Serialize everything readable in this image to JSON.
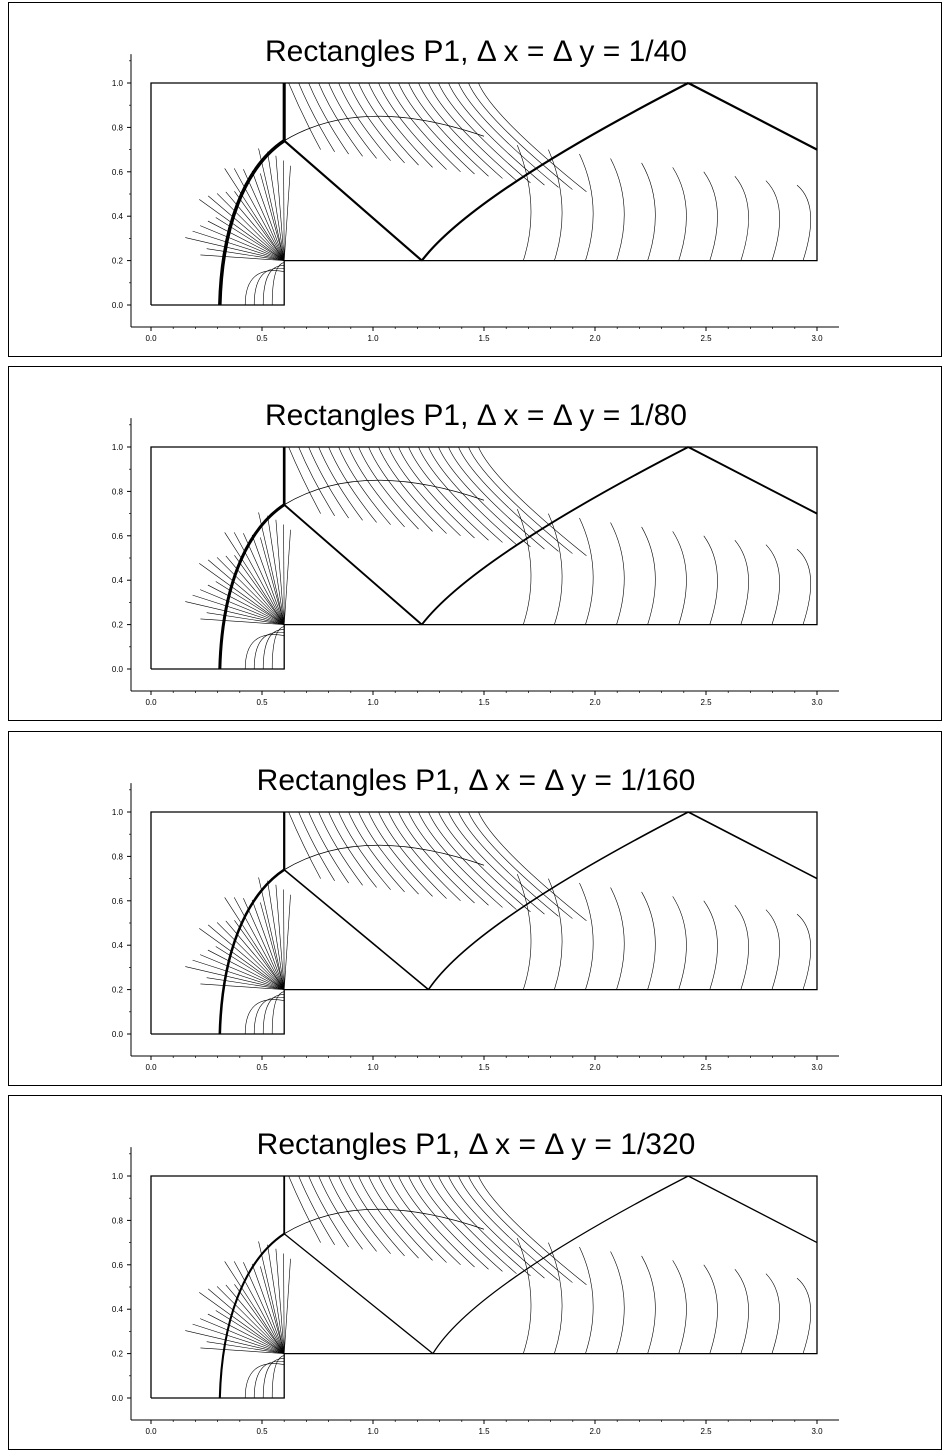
{
  "figure": {
    "panels": [
      {
        "title": "Rectangles P1, Δ x = Δ y = 1/40"
      },
      {
        "title": "Rectangles P1, Δ x = Δ y = 1/80"
      },
      {
        "title": "Rectangles P1, Δ x = Δ y = 1/160"
      },
      {
        "title": "Rectangles P1, Δ x = Δ y = 1/320"
      }
    ]
  },
  "chart_data": [
    {
      "type": "contour",
      "title": "Rectangles P1, Δ x = Δ y = 1/40",
      "xlabel": "",
      "ylabel": "",
      "xlim": [
        0,
        3
      ],
      "ylim": [
        0,
        1.1
      ],
      "xticks": [
        "0.0",
        "0.5",
        "1.0",
        "1.5",
        "2.0",
        "2.5",
        "3.0"
      ],
      "yticks": [
        "0.0",
        "0.2",
        "0.4",
        "0.6",
        "0.8",
        "1.0"
      ],
      "domain_boundary": [
        [
          0,
          0
        ],
        [
          0.6,
          0
        ],
        [
          0.6,
          0.2
        ],
        [
          3,
          0.2
        ],
        [
          3,
          1
        ],
        [
          0,
          1
        ],
        [
          0,
          0
        ]
      ],
      "features": {
        "bow_shock_foot_x": 0.31,
        "mach_stem_x": 0.6,
        "triple_point": [
          0.6,
          0.74
        ],
        "reflection_x": 1.22,
        "top_reflection_x": 2.42
      }
    },
    {
      "type": "contour",
      "title": "Rectangles P1, Δ x = Δ y = 1/80",
      "xlabel": "",
      "ylabel": "",
      "xlim": [
        0,
        3
      ],
      "ylim": [
        0,
        1.1
      ],
      "xticks": [
        "0.0",
        "0.5",
        "1.0",
        "1.5",
        "2.0",
        "2.5",
        "3.0"
      ],
      "yticks": [
        "0.0",
        "0.2",
        "0.4",
        "0.6",
        "0.8",
        "1.0"
      ],
      "domain_boundary": [
        [
          0,
          0
        ],
        [
          0.6,
          0
        ],
        [
          0.6,
          0.2
        ],
        [
          3,
          0.2
        ],
        [
          3,
          1
        ],
        [
          0,
          1
        ],
        [
          0,
          0
        ]
      ],
      "features": {
        "bow_shock_foot_x": 0.31,
        "mach_stem_x": 0.6,
        "triple_point": [
          0.6,
          0.74
        ],
        "reflection_x": 1.22,
        "top_reflection_x": 2.42
      }
    },
    {
      "type": "contour",
      "title": "Rectangles P1, Δ x = Δ y = 1/160",
      "xlabel": "",
      "ylabel": "",
      "xlim": [
        0,
        3
      ],
      "ylim": [
        0,
        1.1
      ],
      "xticks": [
        "0.0",
        "0.5",
        "1.0",
        "1.5",
        "2.0",
        "2.5",
        "3.0"
      ],
      "yticks": [
        "0.0",
        "0.2",
        "0.4",
        "0.6",
        "0.8",
        "1.0"
      ],
      "domain_boundary": [
        [
          0,
          0
        ],
        [
          0.6,
          0
        ],
        [
          0.6,
          0.2
        ],
        [
          3,
          0.2
        ],
        [
          3,
          1
        ],
        [
          0,
          1
        ],
        [
          0,
          0
        ]
      ],
      "features": {
        "bow_shock_foot_x": 0.31,
        "mach_stem_x": 0.6,
        "triple_point": [
          0.6,
          0.74
        ],
        "reflection_x": 1.25,
        "top_reflection_x": 2.42
      }
    },
    {
      "type": "contour",
      "title": "Rectangles P1, Δ x = Δ y = 1/320",
      "xlabel": "",
      "ylabel": "",
      "xlim": [
        0,
        3
      ],
      "ylim": [
        0,
        1.1
      ],
      "xticks": [
        "0.0",
        "0.5",
        "1.0",
        "1.5",
        "2.0",
        "2.5",
        "3.0"
      ],
      "yticks": [
        "0.0",
        "0.2",
        "0.4",
        "0.6",
        "0.8",
        "1.0"
      ],
      "domain_boundary": [
        [
          0,
          0
        ],
        [
          0.6,
          0
        ],
        [
          0.6,
          0.2
        ],
        [
          3,
          0.2
        ],
        [
          3,
          1
        ],
        [
          0,
          1
        ],
        [
          0,
          0
        ]
      ],
      "features": {
        "bow_shock_foot_x": 0.31,
        "mach_stem_x": 0.6,
        "triple_point": [
          0.6,
          0.74
        ],
        "reflection_x": 1.27,
        "top_reflection_x": 2.42
      }
    }
  ]
}
